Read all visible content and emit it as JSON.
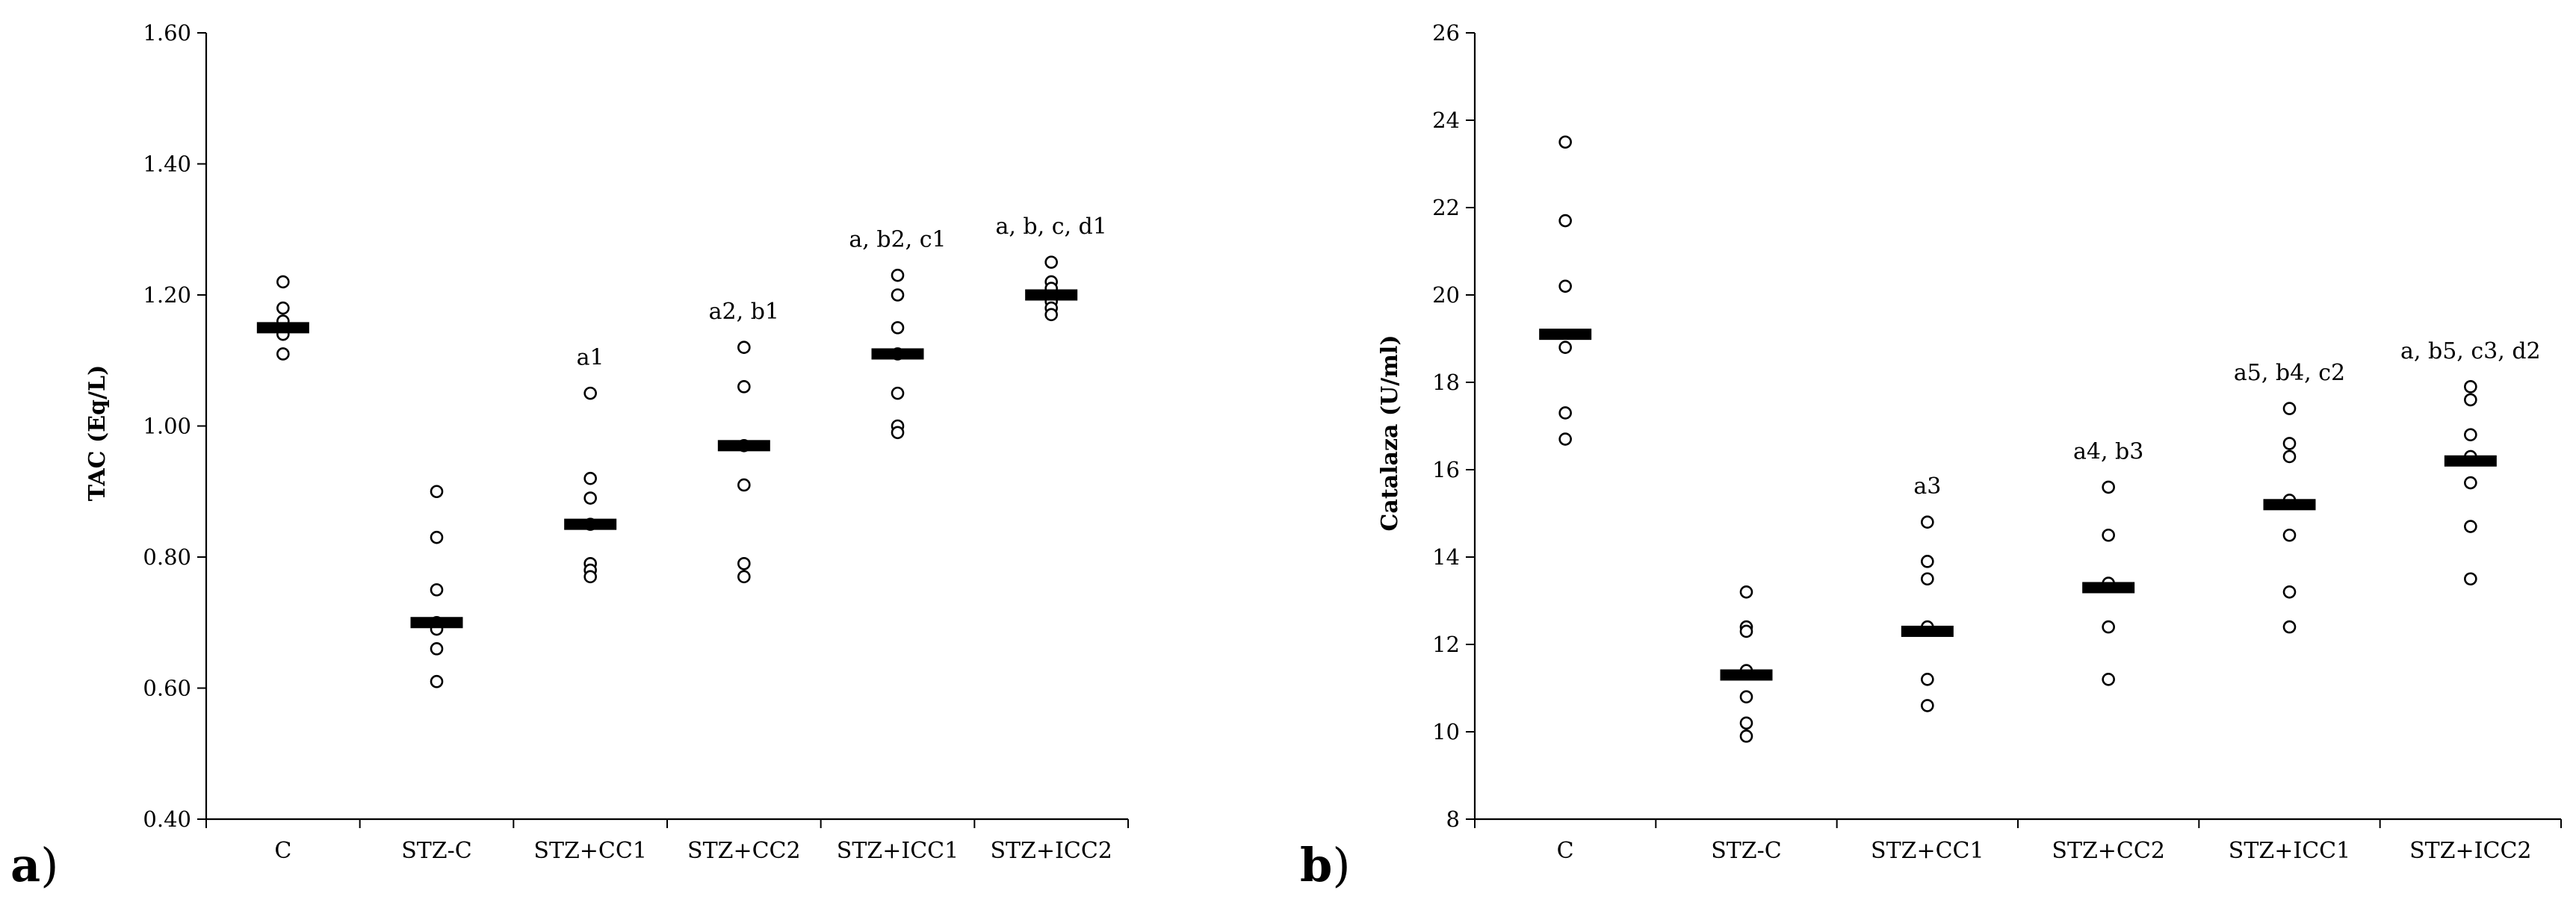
{
  "chart_data": [
    {
      "type": "scatter",
      "panel_label": "a",
      "ylabel": "TAC (Eq/L)",
      "xlabel": "",
      "ylim": [
        0.4,
        1.6
      ],
      "yticks": [
        "0.40",
        "0.60",
        "0.80",
        "1.00",
        "1.20",
        "1.40",
        "1.60"
      ],
      "categories": [
        "C",
        "STZ-C",
        "STZ+CC1",
        "STZ+CC2",
        "STZ+ICC1",
        "STZ+ICC2"
      ],
      "points": [
        [
          1.22,
          1.18,
          1.16,
          1.14,
          1.11
        ],
        [
          0.9,
          0.83,
          0.75,
          0.7,
          0.69,
          0.66,
          0.61
        ],
        [
          1.05,
          0.92,
          0.89,
          0.85,
          0.79,
          0.78,
          0.77
        ],
        [
          1.12,
          1.06,
          0.97,
          0.91,
          0.79,
          0.77
        ],
        [
          1.23,
          1.2,
          1.15,
          1.11,
          1.05,
          1.0,
          0.99
        ],
        [
          1.25,
          1.22,
          1.21,
          1.19,
          1.18,
          1.17
        ]
      ],
      "means": [
        1.15,
        0.7,
        0.85,
        0.97,
        1.11,
        1.2
      ],
      "annotations": [
        "",
        "",
        "a1",
        "a2, b1",
        "a, b2, c1",
        "a, b, c, d1"
      ]
    },
    {
      "type": "scatter",
      "panel_label": "b",
      "ylabel": "Catalaza (U/ml)",
      "xlabel": "",
      "ylim": [
        8,
        26
      ],
      "yticks": [
        "8",
        "10",
        "12",
        "14",
        "16",
        "18",
        "20",
        "22",
        "24",
        "26"
      ],
      "categories": [
        "C",
        "STZ-C",
        "STZ+CC1",
        "STZ+CC2",
        "STZ+ICC1",
        "STZ+ICC2"
      ],
      "points": [
        [
          23.5,
          21.7,
          20.2,
          18.8,
          17.3,
          16.7
        ],
        [
          13.2,
          12.4,
          12.3,
          11.4,
          10.8,
          10.2,
          9.9
        ],
        [
          14.8,
          13.9,
          13.5,
          12.4,
          11.2,
          10.6
        ],
        [
          15.6,
          14.5,
          13.4,
          12.4,
          11.2
        ],
        [
          17.4,
          16.6,
          16.3,
          15.3,
          14.5,
          13.2,
          12.4
        ],
        [
          17.9,
          17.6,
          16.8,
          16.3,
          15.7,
          14.7,
          13.5
        ]
      ],
      "means": [
        19.1,
        11.3,
        12.3,
        13.3,
        15.2,
        16.2
      ],
      "annotations": [
        "",
        "",
        "a3",
        "a4, b3",
        "a5, b4, c2",
        "a, b5, c3, d2"
      ]
    }
  ]
}
